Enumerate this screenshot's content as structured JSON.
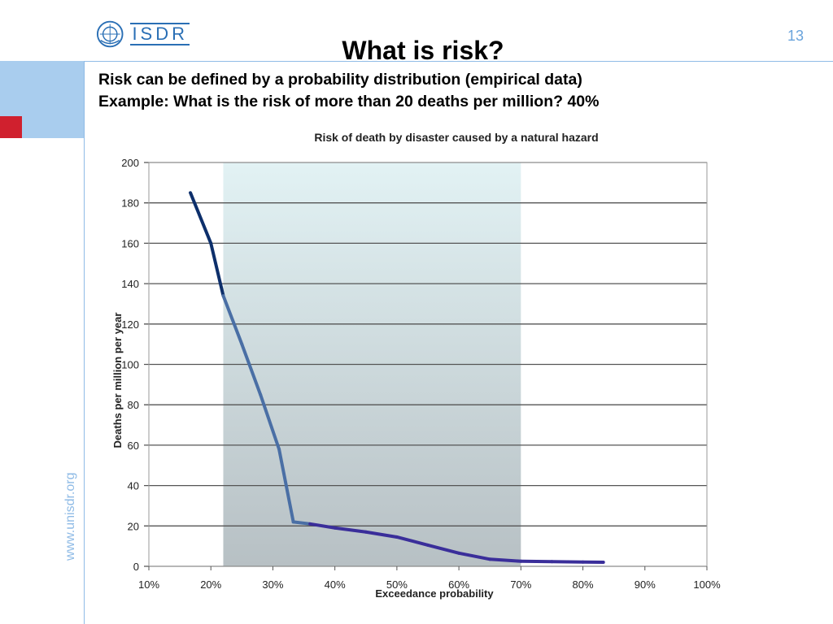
{
  "header": {
    "logo_text": "ISDR",
    "page_number": "13",
    "title": "What is risk?",
    "subtitle_line1": "Risk can be defined by a probability distribution (empirical data)",
    "subtitle_line2": "Example:  What is the risk of more than 20 deaths per million? 40%"
  },
  "side": {
    "url": "www.unisdr.org"
  },
  "colors": {
    "accent_blue": "#a9cdee",
    "accent_red": "#d0202e",
    "line_dark": "#0d2f6b",
    "line_mid": "#4a6fa5",
    "line_low": "#3a2e9a"
  },
  "chart_data": {
    "type": "line",
    "title": "Risk of death by disaster caused by a natural hazard",
    "xlabel": "Exceedance probability",
    "ylabel": "Deaths per million per year",
    "x_ticks": [
      "10%",
      "20%",
      "30%",
      "40%",
      "50%",
      "60%",
      "70%",
      "80%",
      "90%",
      "100%"
    ],
    "y_ticks": [
      "0",
      "20",
      "40",
      "60",
      "80",
      "100",
      "120",
      "140",
      "160",
      "180",
      "200"
    ],
    "xlim": [
      10,
      100
    ],
    "ylim": [
      0,
      200
    ],
    "grid": "horizontal",
    "highlight_range": [
      22,
      70
    ],
    "series": [
      {
        "x": [
          16.7,
          20,
          22,
          25,
          28,
          31,
          33.3,
          36,
          40,
          45,
          50,
          55,
          60,
          65,
          70,
          75,
          80,
          83.3
        ],
        "y": [
          185,
          160,
          134,
          110,
          85,
          58,
          22,
          21,
          19,
          17,
          14.5,
          10.5,
          6.5,
          3.5,
          2.5,
          2.3,
          2.1,
          2.0
        ]
      }
    ]
  }
}
